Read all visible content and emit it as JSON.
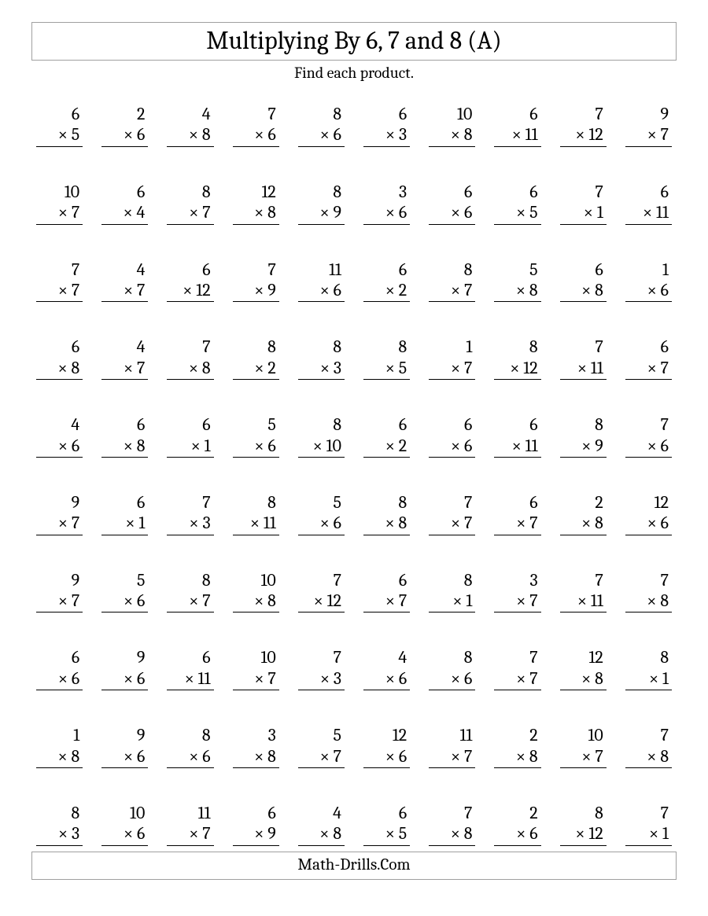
{
  "title": "Multiplying By 6, 7 and 8 (A)",
  "subtitle": "Find each product.",
  "footer": "Math-Drills.Com",
  "multiply_symbol": "×",
  "problems": [
    [
      [
        6,
        5
      ],
      [
        2,
        6
      ],
      [
        4,
        8
      ],
      [
        7,
        6
      ],
      [
        8,
        6
      ],
      [
        6,
        3
      ],
      [
        10,
        8
      ],
      [
        6,
        11
      ],
      [
        7,
        12
      ],
      [
        9,
        7
      ]
    ],
    [
      [
        10,
        7
      ],
      [
        6,
        4
      ],
      [
        8,
        7
      ],
      [
        12,
        8
      ],
      [
        8,
        9
      ],
      [
        3,
        6
      ],
      [
        6,
        6
      ],
      [
        6,
        5
      ],
      [
        7,
        1
      ],
      [
        6,
        11
      ]
    ],
    [
      [
        7,
        7
      ],
      [
        4,
        7
      ],
      [
        6,
        12
      ],
      [
        7,
        9
      ],
      [
        11,
        6
      ],
      [
        6,
        2
      ],
      [
        8,
        7
      ],
      [
        5,
        8
      ],
      [
        6,
        8
      ],
      [
        1,
        6
      ]
    ],
    [
      [
        6,
        8
      ],
      [
        4,
        7
      ],
      [
        7,
        8
      ],
      [
        8,
        2
      ],
      [
        8,
        3
      ],
      [
        8,
        5
      ],
      [
        1,
        7
      ],
      [
        8,
        12
      ],
      [
        7,
        11
      ],
      [
        6,
        7
      ]
    ],
    [
      [
        4,
        6
      ],
      [
        6,
        8
      ],
      [
        6,
        1
      ],
      [
        5,
        6
      ],
      [
        8,
        10
      ],
      [
        6,
        2
      ],
      [
        6,
        6
      ],
      [
        6,
        11
      ],
      [
        8,
        9
      ],
      [
        7,
        6
      ]
    ],
    [
      [
        9,
        7
      ],
      [
        6,
        1
      ],
      [
        7,
        3
      ],
      [
        8,
        11
      ],
      [
        5,
        6
      ],
      [
        8,
        8
      ],
      [
        7,
        7
      ],
      [
        6,
        7
      ],
      [
        2,
        8
      ],
      [
        12,
        6
      ]
    ],
    [
      [
        9,
        7
      ],
      [
        5,
        6
      ],
      [
        8,
        7
      ],
      [
        10,
        8
      ],
      [
        7,
        12
      ],
      [
        6,
        7
      ],
      [
        8,
        1
      ],
      [
        3,
        7
      ],
      [
        7,
        11
      ],
      [
        7,
        8
      ]
    ],
    [
      [
        6,
        6
      ],
      [
        9,
        6
      ],
      [
        6,
        11
      ],
      [
        10,
        7
      ],
      [
        7,
        3
      ],
      [
        4,
        6
      ],
      [
        8,
        6
      ],
      [
        7,
        7
      ],
      [
        12,
        8
      ],
      [
        8,
        1
      ]
    ],
    [
      [
        1,
        8
      ],
      [
        9,
        6
      ],
      [
        8,
        6
      ],
      [
        3,
        8
      ],
      [
        5,
        7
      ],
      [
        12,
        6
      ],
      [
        11,
        7
      ],
      [
        2,
        8
      ],
      [
        10,
        7
      ],
      [
        7,
        8
      ]
    ],
    [
      [
        8,
        3
      ],
      [
        10,
        6
      ],
      [
        11,
        7
      ],
      [
        6,
        9
      ],
      [
        4,
        8
      ],
      [
        6,
        5
      ],
      [
        7,
        8
      ],
      [
        2,
        6
      ],
      [
        8,
        12
      ],
      [
        7,
        1
      ]
    ]
  ]
}
